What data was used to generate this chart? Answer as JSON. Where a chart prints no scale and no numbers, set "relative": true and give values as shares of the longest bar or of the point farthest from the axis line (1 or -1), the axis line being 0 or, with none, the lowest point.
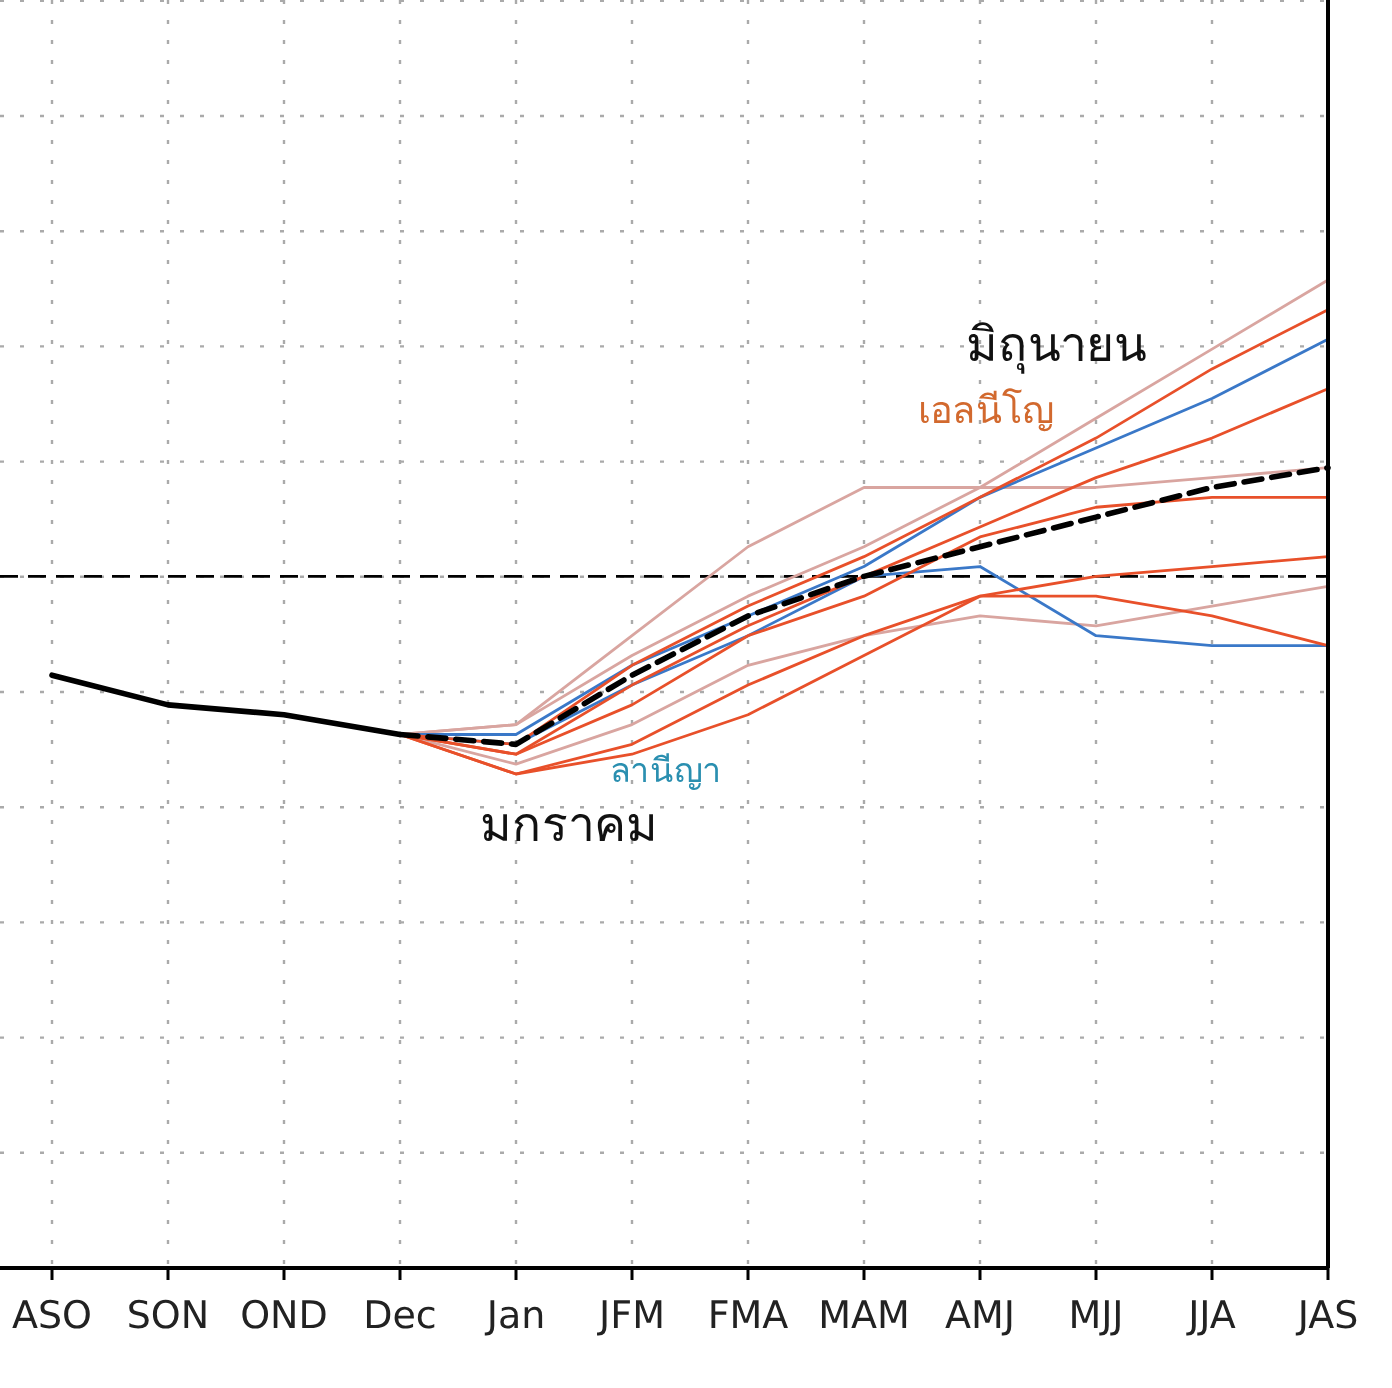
{
  "chart_data": {
    "type": "line",
    "relative": true,
    "grid": true,
    "marker": "none",
    "categories": [
      "ASO",
      "SON",
      "OND",
      "Dec",
      "Jan",
      "JFM",
      "FMA",
      "MAM",
      "AMJ",
      "MJJ",
      "JJA",
      "JAS"
    ],
    "series": [
      {
        "color": "#d9a5a0",
        "values": [
          null,
          null,
          null,
          0.54,
          0.55,
          0.62,
          0.68,
          0.73,
          0.79,
          0.86,
          0.93,
          1.0
        ]
      },
      {
        "color": "#d9a5a0",
        "values": [
          null,
          null,
          null,
          0.54,
          0.55,
          0.64,
          0.73,
          0.79,
          0.79,
          0.79,
          0.8,
          0.81
        ]
      },
      {
        "color": "#d9a5a0",
        "values": [
          null,
          null,
          null,
          0.54,
          0.51,
          0.55,
          0.61,
          0.64,
          0.66,
          0.65,
          0.67,
          0.69
        ]
      },
      {
        "color": "#3a78c8",
        "values": [
          null,
          null,
          null,
          0.54,
          0.54,
          0.61,
          0.66,
          0.71,
          0.78,
          0.83,
          0.88,
          0.94
        ]
      },
      {
        "color": "#3a78c8",
        "values": [
          null,
          null,
          null,
          0.54,
          0.53,
          0.59,
          0.64,
          0.7,
          0.71,
          0.64,
          0.63,
          0.63
        ]
      },
      {
        "color": "#e8502a",
        "values": [
          null,
          null,
          null,
          0.54,
          0.53,
          0.61,
          0.67,
          0.72,
          0.78,
          0.84,
          0.91,
          0.97
        ]
      },
      {
        "color": "#e8502a",
        "values": [
          null,
          null,
          null,
          0.54,
          0.52,
          0.59,
          0.65,
          0.7,
          0.75,
          0.8,
          0.84,
          0.89
        ]
      },
      {
        "color": "#e8502a",
        "values": [
          null,
          null,
          null,
          0.54,
          0.52,
          0.57,
          0.64,
          0.68,
          0.74,
          0.77,
          0.78,
          0.78
        ]
      },
      {
        "color": "#e8502a",
        "values": [
          null,
          null,
          null,
          0.54,
          0.5,
          0.53,
          0.59,
          0.64,
          0.68,
          0.7,
          0.71,
          0.72
        ]
      },
      {
        "color": "#e8502a",
        "values": [
          null,
          null,
          null,
          0.54,
          0.5,
          0.52,
          0.56,
          0.62,
          0.68,
          0.68,
          0.66,
          0.63
        ]
      },
      {
        "color": "#000000",
        "line_style": "solid",
        "values": [
          0.6,
          0.57,
          0.56,
          0.54,
          null,
          null,
          null,
          null,
          null,
          null,
          null,
          null
        ]
      },
      {
        "color": "#000000",
        "line_style": "dashed",
        "values": [
          null,
          null,
          null,
          0.54,
          0.53,
          0.6,
          0.66,
          0.7,
          0.73,
          0.76,
          0.79,
          0.81
        ]
      }
    ],
    "ref_lines": [
      {
        "axis": "y",
        "value": 0.7,
        "color": "#000000",
        "line_style": "dashed"
      }
    ],
    "annotations": [
      "มิถุนายน",
      "เอลนีโญ",
      "ลานีญา",
      "มกราคม"
    ]
  }
}
